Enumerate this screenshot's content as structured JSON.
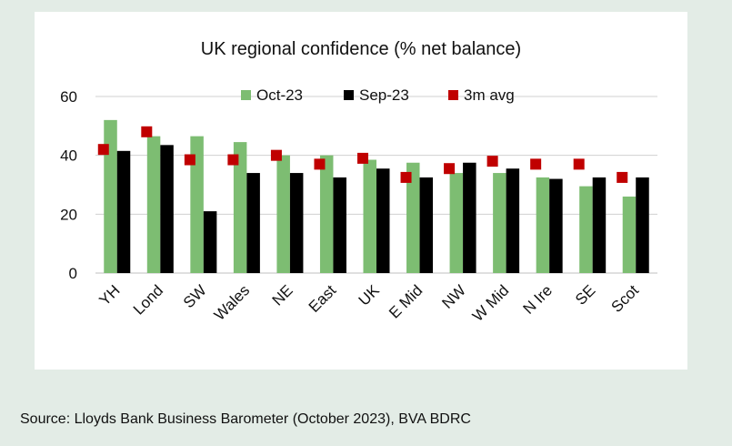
{
  "colors": {
    "background": "#e3ece6",
    "panel": "#ffffff",
    "oct": "#7dbd72",
    "sep": "#000000",
    "avg": "#c00000",
    "grid": "#d0d0d0"
  },
  "source": "Source: Lloyds Bank Business Barometer (October 2023), BVA BDRC",
  "chart_data": {
    "type": "bar",
    "title": "UK regional confidence (% net balance)",
    "xlabel": "",
    "ylabel": "",
    "ylim": [
      0,
      60
    ],
    "yticks": [
      "0",
      "20",
      "40",
      "60"
    ],
    "grid": true,
    "legend_position": "top",
    "categories": [
      "YH",
      "Lond",
      "SW",
      "Wales",
      "NE",
      "East",
      "UK",
      "E Mid",
      "NW",
      "W Mid",
      "N Ire",
      "SE",
      "Scot"
    ],
    "series": [
      {
        "name": "Oct-23",
        "kind": "bar",
        "color": "#7dbd72",
        "values": [
          52,
          46.5,
          46.5,
          44.5,
          40,
          40,
          38.5,
          37.5,
          34,
          34,
          32.5,
          29.5,
          26
        ]
      },
      {
        "name": "Sep-23",
        "kind": "bar",
        "color": "#000000",
        "values": [
          41.5,
          43.5,
          21,
          34,
          34,
          32.5,
          35.5,
          32.5,
          37.5,
          35.5,
          32,
          32.5,
          32.5
        ]
      },
      {
        "name": "3m avg",
        "kind": "marker",
        "color": "#c00000",
        "values": [
          42,
          48,
          38.5,
          38.5,
          40,
          37,
          39,
          32.5,
          35.5,
          38,
          37,
          37,
          32.5
        ]
      }
    ]
  }
}
